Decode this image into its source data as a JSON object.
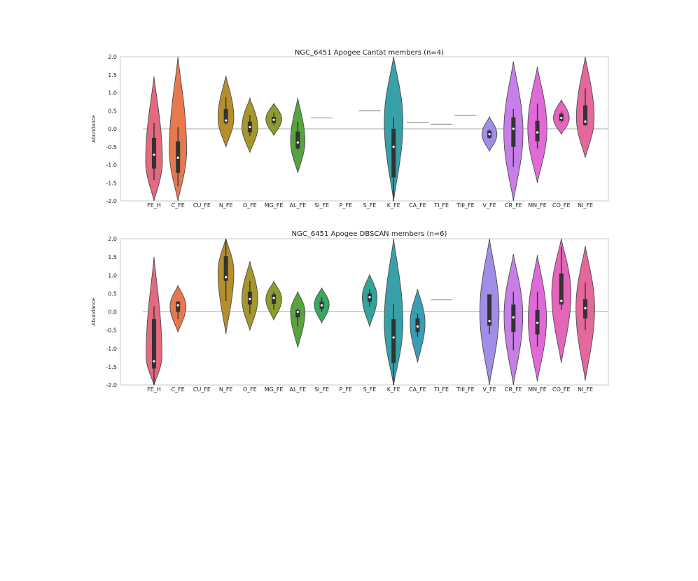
{
  "chart_data": [
    {
      "type": "violin",
      "title": "NGC_6451 Apogee Cantat members (n=4)",
      "xlabel": "",
      "ylabel": "Abundance",
      "ylim": [
        -2.0,
        2.0
      ],
      "yticks": [
        "-2.0",
        "-1.5",
        "-1.0",
        "-0.5",
        "0.0",
        "0.5",
        "1.0",
        "1.5",
        "2.0"
      ],
      "zero_line": true,
      "categories": [
        "FE_H",
        "C_FE",
        "CU_FE",
        "N_FE",
        "O_FE",
        "MG_FE",
        "AL_FE",
        "SI_FE",
        "P_FE",
        "S_FE",
        "K_FE",
        "CA_FE",
        "TI_FE",
        "TIII_FE",
        "V_FE",
        "CR_FE",
        "MN_FE",
        "CO_FE",
        "NI_FE"
      ],
      "colors": [
        "#e2697f",
        "#e7794f",
        "#d2912c",
        "#b58f2e",
        "#a6962d",
        "#8e9c2f",
        "#58a340",
        "#3aa85e",
        "#37a689",
        "#36a39a",
        "#38a0a8",
        "#3a9db6",
        "#4099cc",
        "#7a8fe0",
        "#a28de6",
        "#c77ee6",
        "#e16ad9",
        "#e466bb",
        "#e3689b"
      ],
      "violins": [
        {
          "cat": "FE_H",
          "min": -2.0,
          "max": 1.45,
          "peak": -0.9,
          "width": 0.7,
          "q1": -1.1,
          "med": -0.72,
          "q3": -0.25,
          "wlo": -1.42,
          "whi": 0.16
        },
        {
          "cat": "C_FE",
          "min": -2.0,
          "max": 2.0,
          "peak": -0.6,
          "width": 0.72,
          "q1": -1.22,
          "med": -0.8,
          "q3": -0.35,
          "wlo": -1.6,
          "whi": 0.05
        },
        {
          "cat": "N_FE",
          "min": -0.5,
          "max": 1.47,
          "peak": 0.3,
          "width": 0.66,
          "q1": 0.16,
          "med": 0.23,
          "q3": 0.55,
          "wlo": 0.12,
          "whi": 0.88
        },
        {
          "cat": "O_FE",
          "min": -0.65,
          "max": 0.85,
          "peak": 0.05,
          "width": 0.66,
          "q1": -0.1,
          "med": 0.05,
          "q3": 0.2,
          "wlo": -0.2,
          "whi": 0.38
        },
        {
          "cat": "MG_FE",
          "min": -0.18,
          "max": 0.7,
          "peak": 0.27,
          "width": 0.66,
          "q1": 0.16,
          "med": 0.25,
          "q3": 0.33,
          "wlo": 0.1,
          "whi": 0.45
        },
        {
          "cat": "AL_FE",
          "min": -1.22,
          "max": 0.85,
          "peak": -0.35,
          "width": 0.6,
          "q1": -0.55,
          "med": -0.38,
          "q3": -0.08,
          "wlo": -0.58,
          "whi": 0.2
        },
        {
          "cat": "SI_FE",
          "line": 0.3,
          "width": 0.9
        },
        {
          "cat": "S_FE",
          "line": 0.5,
          "width": 0.9
        },
        {
          "cat": "K_FE",
          "min": -2.0,
          "max": 2.0,
          "peak": 0.2,
          "width": 0.78,
          "q1": -1.35,
          "med": -0.5,
          "q3": 0.0,
          "wlo": -2.0,
          "whi": 0.32
        },
        {
          "cat": "CA_FE",
          "line": 0.18,
          "width": 0.9
        },
        {
          "cat": "TI_FE",
          "line": 0.13,
          "width": 0.9
        },
        {
          "cat": "TIII_FE",
          "line": 0.38,
          "width": 0.9
        },
        {
          "cat": "V_FE",
          "min": -0.62,
          "max": 0.33,
          "peak": -0.15,
          "width": 0.62,
          "q1": -0.25,
          "med": -0.15,
          "q3": -0.05,
          "wlo": -0.28,
          "whi": -0.02
        },
        {
          "cat": "CR_FE",
          "min": -2.0,
          "max": 1.87,
          "peak": -0.1,
          "width": 0.8,
          "q1": -0.5,
          "med": 0.0,
          "q3": 0.32,
          "wlo": -1.05,
          "whi": 0.55
        },
        {
          "cat": "MN_FE",
          "min": -1.5,
          "max": 1.72,
          "peak": 0.0,
          "width": 0.8,
          "q1": -0.35,
          "med": -0.1,
          "q3": 0.22,
          "wlo": -0.55,
          "whi": 0.7
        },
        {
          "cat": "CO_FE",
          "min": -0.15,
          "max": 0.8,
          "peak": 0.3,
          "width": 0.66,
          "q1": 0.22,
          "med": 0.3,
          "q3": 0.42,
          "wlo": 0.18,
          "whi": 0.48
        },
        {
          "cat": "NI_FE",
          "min": -0.8,
          "max": 2.0,
          "peak": 0.3,
          "width": 0.74,
          "q1": 0.1,
          "med": 0.2,
          "q3": 0.65,
          "wlo": 0.08,
          "whi": 1.12
        }
      ]
    },
    {
      "type": "violin",
      "title": "NGC_6451 Apogee DBSCAN members (n=6)",
      "xlabel": "",
      "ylabel": "Abundance",
      "ylim": [
        -2.0,
        2.0
      ],
      "yticks": [
        "-2.0",
        "-1.5",
        "-1.0",
        "-0.5",
        "0.0",
        "0.5",
        "1.0",
        "1.5",
        "2.0"
      ],
      "zero_line": true,
      "categories": [
        "FE_H",
        "C_FE",
        "CU_FE",
        "N_FE",
        "O_FE",
        "MG_FE",
        "AL_FE",
        "SI_FE",
        "P_FE",
        "S_FE",
        "K_FE",
        "CA_FE",
        "TI_FE",
        "TIII_FE",
        "V_FE",
        "CR_FE",
        "MN_FE",
        "CO_FE",
        "NI_FE"
      ],
      "colors": [
        "#e2697f",
        "#e7794f",
        "#d2912c",
        "#b58f2e",
        "#a6962d",
        "#8e9c2f",
        "#58a340",
        "#3aa85e",
        "#37a689",
        "#36a39a",
        "#38a0a8",
        "#3a9db6",
        "#4099cc",
        "#7a8fe0",
        "#a28de6",
        "#c77ee6",
        "#e16ad9",
        "#e466bb",
        "#e3689b"
      ],
      "violins": [
        {
          "cat": "FE_H",
          "min": -2.0,
          "max": 1.5,
          "peak": -1.2,
          "width": 0.66,
          "q1": -1.55,
          "med": -1.35,
          "q3": -0.2,
          "wlo": -2.0,
          "whi": 0.15
        },
        {
          "cat": "C_FE",
          "min": -0.55,
          "max": 0.72,
          "peak": 0.15,
          "width": 0.66,
          "q1": 0.0,
          "med": 0.18,
          "q3": 0.28,
          "wlo": -0.2,
          "whi": 0.3
        },
        {
          "cat": "N_FE",
          "min": -0.6,
          "max": 2.0,
          "peak": 1.1,
          "width": 0.66,
          "q1": 0.85,
          "med": 0.95,
          "q3": 1.52,
          "wlo": 0.3,
          "whi": 2.0
        },
        {
          "cat": "O_FE",
          "min": -0.5,
          "max": 1.38,
          "peak": 0.35,
          "width": 0.66,
          "q1": 0.2,
          "med": 0.35,
          "q3": 0.55,
          "wlo": -0.05,
          "whi": 0.85
        },
        {
          "cat": "MG_FE",
          "min": -0.22,
          "max": 0.83,
          "peak": 0.35,
          "width": 0.66,
          "q1": 0.22,
          "med": 0.38,
          "q3": 0.48,
          "wlo": 0.06,
          "whi": 0.55
        },
        {
          "cat": "AL_FE",
          "min": -0.98,
          "max": 0.55,
          "peak": 0.0,
          "width": 0.6,
          "q1": -0.15,
          "med": 0.0,
          "q3": 0.05,
          "wlo": -0.4,
          "whi": 0.1
        },
        {
          "cat": "SI_FE",
          "min": -0.3,
          "max": 0.65,
          "peak": 0.2,
          "width": 0.62,
          "q1": 0.08,
          "med": 0.18,
          "q3": 0.28,
          "wlo": 0.0,
          "whi": 0.4
        },
        {
          "cat": "S_FE",
          "min": -0.4,
          "max": 1.02,
          "peak": 0.4,
          "width": 0.62,
          "q1": 0.28,
          "med": 0.4,
          "q3": 0.5,
          "wlo": 0.15,
          "whi": 0.62
        },
        {
          "cat": "K_FE",
          "min": -2.0,
          "max": 2.0,
          "peak": -0.3,
          "width": 0.78,
          "q1": -1.4,
          "med": -0.7,
          "q3": -0.2,
          "wlo": -2.0,
          "whi": 0.22
        },
        {
          "cat": "CA_FE",
          "min": -1.38,
          "max": 0.62,
          "peak": -0.3,
          "width": 0.62,
          "q1": -0.55,
          "med": -0.4,
          "q3": -0.18,
          "wlo": -0.68,
          "whi": -0.05
        },
        {
          "cat": "TI_FE",
          "line": 0.33,
          "width": 0.9
        },
        {
          "cat": "V_FE",
          "min": -2.0,
          "max": 2.0,
          "peak": 0.0,
          "width": 0.8,
          "q1": -0.38,
          "med": -0.25,
          "q3": 0.48,
          "wlo": -0.6,
          "whi": 0.48
        },
        {
          "cat": "CR_FE",
          "min": -2.0,
          "max": 1.58,
          "peak": -0.1,
          "width": 0.78,
          "q1": -0.55,
          "med": -0.15,
          "q3": 0.2,
          "wlo": -1.05,
          "whi": 0.55
        },
        {
          "cat": "MN_FE",
          "min": -1.9,
          "max": 1.55,
          "peak": -0.2,
          "width": 0.76,
          "q1": -0.62,
          "med": -0.3,
          "q3": 0.05,
          "wlo": -0.95,
          "whi": 0.55
        },
        {
          "cat": "CO_FE",
          "min": -1.4,
          "max": 2.0,
          "peak": 0.5,
          "width": 0.8,
          "q1": 0.2,
          "med": 0.3,
          "q3": 1.05,
          "wlo": 0.05,
          "whi": 1.78
        },
        {
          "cat": "NI_FE",
          "min": -1.88,
          "max": 1.8,
          "peak": 0.1,
          "width": 0.78,
          "q1": -0.18,
          "med": 0.1,
          "q3": 0.35,
          "wlo": -0.5,
          "whi": 0.8
        }
      ]
    }
  ]
}
